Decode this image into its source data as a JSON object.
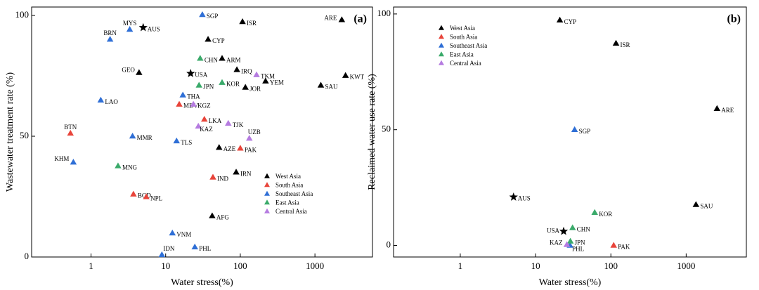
{
  "chart_data": [
    {
      "type": "scatter",
      "panel_label": "(a)",
      "xlabel": "Water stress(%)",
      "ylabel": "Wastewater treatment rate (%)",
      "xscale": "log",
      "xlim": [
        0.16,
        5900
      ],
      "ylim": [
        0,
        103.5
      ],
      "xticks": [
        1,
        10,
        100,
        1000
      ],
      "yticks": [
        0,
        50,
        100
      ],
      "legend_position": "lower right",
      "series": [
        {
          "name": "West Asia",
          "color": "#000000",
          "marker": "triangle",
          "labels": [
            "ARE",
            "KWT",
            "SAU",
            "YEM",
            "JOR",
            "ISR",
            "IRQ",
            "ARM",
            "CYP",
            "GEO",
            "AZE",
            "IRN",
            "AFG"
          ],
          "x": [
            2290,
            2570,
            1200,
            218,
            117,
            107,
            90,
            57,
            37,
            4.4,
            52,
            88,
            42
          ],
          "y": [
            98.2,
            75.1,
            71.1,
            72.8,
            70.2,
            97.4,
            77.5,
            82.2,
            90.1,
            76.3,
            45.3,
            35.1,
            17.0
          ]
        },
        {
          "name": "South Asia",
          "color": "#e8443a",
          "marker": "triangle",
          "labels": [
            "BTN",
            "MDV",
            "LKA",
            "PAK",
            "IND",
            "BGD",
            "NPL"
          ],
          "x": [
            0.53,
            15.2,
            33,
            100,
            43,
            3.7,
            5.5
          ],
          "y": [
            51.2,
            63.2,
            57.0,
            45.0,
            33.0,
            26.0,
            24.9
          ]
        },
        {
          "name": "Southeast Asia",
          "color": "#2f6fd6",
          "marker": "triangle",
          "labels": [
            "SGP",
            "MYS",
            "BRN",
            "LAO",
            "THA",
            "MMR",
            "TLS",
            "KHM",
            "VNM",
            "PHL",
            "IDN"
          ],
          "x": [
            31,
            3.3,
            1.8,
            1.35,
            17,
            3.6,
            14,
            0.58,
            12.3,
            24.6,
            8.9
          ],
          "y": [
            100.3,
            94.2,
            90.1,
            64.9,
            67.0,
            50.0,
            48.0,
            39.2,
            9.9,
            4.1,
            0.9
          ]
        },
        {
          "name": "East Asia",
          "color": "#3aaa6a",
          "marker": "triangle",
          "labels": [
            "CHN",
            "JPN",
            "KOR",
            "MNG"
          ],
          "x": [
            29,
            28,
            57,
            2.3
          ],
          "y": [
            82.2,
            71.1,
            72.2,
            37.7
          ]
        },
        {
          "name": "Central Asia",
          "color": "#b57be0",
          "marker": "triangle",
          "labels": [
            "TKM",
            "KGZ",
            "TJK",
            "KAZ",
            "UZB"
          ],
          "x": [
            165,
            23.5,
            69,
            27.4,
            132
          ],
          "y": [
            75.4,
            63.2,
            55.3,
            54.1,
            49.1
          ]
        }
      ],
      "reference": {
        "color": "#000000",
        "marker": "star",
        "labels": [
          "AUS",
          "USA"
        ],
        "x": [
          5.0,
          21.6
        ],
        "y": [
          95.0,
          76.0
        ]
      }
    },
    {
      "type": "scatter",
      "panel_label": "(b)",
      "xlabel": "Water stress(%)",
      "ylabel": "Reclaimed water use rate (%)",
      "xscale": "log",
      "xlim": [
        0.13,
        6300
      ],
      "ylim": [
        -5,
        103
      ],
      "xticks": [
        1,
        10,
        100,
        1000
      ],
      "yticks": [
        0,
        50,
        100
      ],
      "legend_position": "upper left",
      "series": [
        {
          "name": "West Asia",
          "color": "#000000",
          "marker": "triangle",
          "labels": [
            "CYP",
            "ISR",
            "ARE",
            "SAU"
          ],
          "x": [
            21,
            117,
            2570,
            1350
          ],
          "y": [
            97.3,
            87.3,
            59.1,
            17.6
          ]
        },
        {
          "name": "South Asia",
          "color": "#e8443a",
          "marker": "triangle",
          "labels": [
            "PAK"
          ],
          "x": [
            109
          ],
          "y": [
            0
          ]
        },
        {
          "name": "Southeast Asia",
          "color": "#2f6fd6",
          "marker": "triangle",
          "labels": [
            "SGP",
            "PHL"
          ],
          "x": [
            33,
            28.7
          ],
          "y": [
            50,
            0
          ]
        },
        {
          "name": "East Asia",
          "color": "#3aaa6a",
          "marker": "triangle",
          "labels": [
            "KOR",
            "CHN",
            "JPN"
          ],
          "x": [
            61,
            31,
            29
          ],
          "y": [
            14.2,
            7.6,
            1.8
          ]
        },
        {
          "name": "Central Asia",
          "color": "#b57be0",
          "marker": "triangle",
          "labels": [
            "KAZ"
          ],
          "x": [
            26
          ],
          "y": [
            0.3
          ]
        }
      ],
      "reference": {
        "color": "#000000",
        "marker": "star",
        "labels": [
          "AUS",
          "USA"
        ],
        "x": [
          5.1,
          23.6
        ],
        "y": [
          20.9,
          6.1
        ]
      }
    }
  ]
}
